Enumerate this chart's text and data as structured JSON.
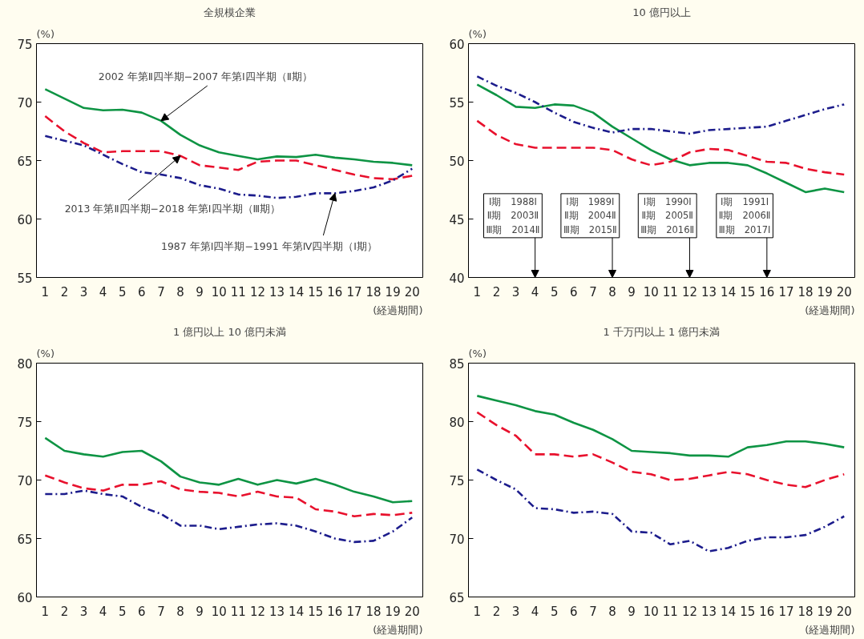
{
  "chart_data": [
    {
      "type": "line",
      "title": "全規模企業",
      "ylabel": "(%)",
      "xlabel": "(経過期間)",
      "x": [
        1,
        2,
        3,
        4,
        5,
        6,
        7,
        8,
        9,
        10,
        11,
        12,
        13,
        14,
        15,
        16,
        17,
        18,
        19,
        20
      ],
      "xlim": [
        0.55,
        20.55
      ],
      "xticks": [
        1,
        2,
        3,
        4,
        5,
        6,
        7,
        8,
        9,
        10,
        11,
        12,
        13,
        14,
        15,
        16,
        17,
        18,
        19,
        20
      ],
      "ylim": [
        55,
        75
      ],
      "yticks": [
        55,
        60,
        65,
        70,
        75
      ],
      "series": [
        {
          "color": "#0e9444",
          "line_style": "solid",
          "values": [
            71.1,
            70.3,
            69.5,
            69.3,
            69.35,
            69.1,
            68.4,
            67.2,
            66.3,
            65.7,
            65.4,
            65.1,
            65.35,
            65.3,
            65.5,
            65.25,
            65.1,
            64.9,
            64.8,
            64.6
          ]
        },
        {
          "color": "#e8112d",
          "line_style": "dashed",
          "values": [
            68.8,
            67.5,
            66.5,
            65.7,
            65.8,
            65.8,
            65.8,
            65.4,
            64.6,
            64.4,
            64.2,
            64.9,
            65.0,
            65.0,
            64.6,
            64.2,
            63.8,
            63.5,
            63.4,
            63.7
          ]
        },
        {
          "color": "#1c1c8c",
          "line_style": "dashdot",
          "values": [
            67.1,
            66.7,
            66.3,
            65.5,
            64.7,
            64.0,
            63.8,
            63.5,
            62.9,
            62.6,
            62.1,
            62.0,
            61.8,
            61.9,
            62.2,
            62.2,
            62.4,
            62.7,
            63.3,
            64.3
          ]
        }
      ],
      "annotations": [
        {
          "text": "2002 年第Ⅱ四半期−2007 年第Ⅰ四半期（Ⅱ期）",
          "x": 7,
          "y": 68.4
        },
        {
          "text": "2013 年第Ⅱ四半期−2018 年第Ⅰ四半期（Ⅲ期）",
          "x": 8,
          "y": 65.4
        },
        {
          "text": "1987 年第Ⅰ四半期−1991 年第Ⅳ四半期（Ⅰ期）",
          "x": 16,
          "y": 62.2
        }
      ]
    },
    {
      "type": "line",
      "title": "10 億円以上",
      "ylabel": "(%)",
      "xlabel": "(経過期間)",
      "x": [
        1,
        2,
        3,
        4,
        5,
        6,
        7,
        8,
        9,
        10,
        11,
        12,
        13,
        14,
        15,
        16,
        17,
        18,
        19,
        20
      ],
      "xlim": [
        0.55,
        20.55
      ],
      "xticks": [
        1,
        2,
        3,
        4,
        5,
        6,
        7,
        8,
        9,
        10,
        11,
        12,
        13,
        14,
        15,
        16,
        17,
        18,
        19,
        20
      ],
      "ylim": [
        40,
        60
      ],
      "yticks": [
        40,
        45,
        50,
        55,
        60
      ],
      "series": [
        {
          "color": "#0e9444",
          "line_style": "solid",
          "values": [
            56.5,
            55.6,
            54.6,
            54.5,
            54.8,
            54.7,
            54.1,
            52.9,
            51.9,
            50.9,
            50.1,
            49.6,
            49.8,
            49.8,
            49.6,
            48.9,
            48.1,
            47.3,
            47.6,
            47.3
          ]
        },
        {
          "color": "#e8112d",
          "line_style": "dashed",
          "values": [
            53.4,
            52.2,
            51.4,
            51.1,
            51.1,
            51.1,
            51.1,
            50.9,
            50.1,
            49.6,
            49.9,
            50.7,
            51.0,
            50.9,
            50.4,
            49.9,
            49.8,
            49.3,
            49.0,
            48.8
          ]
        },
        {
          "color": "#1c1c8c",
          "line_style": "dashdot",
          "values": [
            57.2,
            56.4,
            55.8,
            55.0,
            54.1,
            53.3,
            52.8,
            52.4,
            52.7,
            52.7,
            52.5,
            52.3,
            52.6,
            52.7,
            52.8,
            52.9,
            53.4,
            53.9,
            54.4,
            54.8
          ]
        }
      ],
      "annotations": [
        "Ⅰ期　1988Ⅰ\nⅡ期　2003Ⅱ\nⅢ期　2014Ⅱ",
        "Ⅰ期　1989Ⅰ\nⅡ期　2004Ⅱ\nⅢ期　2015Ⅱ",
        "Ⅰ期　1990Ⅰ\nⅡ期　2005Ⅱ\nⅢ期　2016Ⅱ",
        "Ⅰ期　1991Ⅰ\nⅡ期　2006Ⅱ\nⅢ期　2017Ⅰ"
      ]
    },
    {
      "type": "line",
      "title": "1 億円以上 10 億円未満",
      "ylabel": "(%)",
      "xlabel": "(経過期間)",
      "x": [
        1,
        2,
        3,
        4,
        5,
        6,
        7,
        8,
        9,
        10,
        11,
        12,
        13,
        14,
        15,
        16,
        17,
        18,
        19,
        20
      ],
      "xlim": [
        0.55,
        20.55
      ],
      "xticks": [
        1,
        2,
        3,
        4,
        5,
        6,
        7,
        8,
        9,
        10,
        11,
        12,
        13,
        14,
        15,
        16,
        17,
        18,
        19,
        20
      ],
      "ylim": [
        60,
        80
      ],
      "yticks": [
        60,
        65,
        70,
        75,
        80
      ],
      "series": [
        {
          "color": "#0e9444",
          "line_style": "solid",
          "values": [
            73.6,
            72.5,
            72.2,
            72.0,
            72.4,
            72.5,
            71.6,
            70.3,
            69.8,
            69.6,
            70.1,
            69.6,
            70.0,
            69.7,
            70.1,
            69.6,
            69.0,
            68.6,
            68.1,
            68.2
          ]
        },
        {
          "color": "#e8112d",
          "line_style": "dashed",
          "values": [
            70.4,
            69.8,
            69.3,
            69.1,
            69.6,
            69.6,
            69.9,
            69.2,
            69.0,
            68.9,
            68.6,
            69.0,
            68.6,
            68.5,
            67.5,
            67.3,
            66.9,
            67.1,
            67.0,
            67.2
          ]
        },
        {
          "color": "#1c1c8c",
          "line_style": "dashdot",
          "values": [
            68.8,
            68.8,
            69.1,
            68.8,
            68.6,
            67.7,
            67.1,
            66.1,
            66.1,
            65.8,
            66.0,
            66.2,
            66.3,
            66.1,
            65.6,
            65.0,
            64.7,
            64.8,
            65.6,
            66.8
          ]
        }
      ]
    },
    {
      "type": "line",
      "title": "1 千万円以上 1 億円未満",
      "ylabel": "(%)",
      "xlabel": "(経過期間)",
      "x": [
        1,
        2,
        3,
        4,
        5,
        6,
        7,
        8,
        9,
        10,
        11,
        12,
        13,
        14,
        15,
        16,
        17,
        18,
        19,
        20
      ],
      "xlim": [
        0.55,
        20.55
      ],
      "xticks": [
        1,
        2,
        3,
        4,
        5,
        6,
        7,
        8,
        9,
        10,
        11,
        12,
        13,
        14,
        15,
        16,
        17,
        18,
        19,
        20
      ],
      "ylim": [
        65,
        85
      ],
      "yticks": [
        65,
        70,
        75,
        80,
        85
      ],
      "series": [
        {
          "color": "#0e9444",
          "line_style": "solid",
          "values": [
            82.2,
            81.8,
            81.4,
            80.9,
            80.6,
            79.9,
            79.3,
            78.5,
            77.5,
            77.4,
            77.3,
            77.1,
            77.1,
            77.0,
            77.8,
            78.0,
            78.3,
            78.3,
            78.1,
            77.8
          ]
        },
        {
          "color": "#e8112d",
          "line_style": "dashed",
          "values": [
            80.8,
            79.7,
            78.8,
            77.2,
            77.2,
            77.0,
            77.2,
            76.5,
            75.7,
            75.5,
            75.0,
            75.1,
            75.4,
            75.7,
            75.5,
            75.0,
            74.6,
            74.4,
            75.0,
            75.5
          ]
        },
        {
          "color": "#1c1c8c",
          "line_style": "dashdot",
          "values": [
            75.9,
            75.0,
            74.2,
            72.6,
            72.5,
            72.2,
            72.3,
            72.1,
            70.6,
            70.5,
            69.5,
            69.8,
            68.9,
            69.2,
            69.8,
            70.1,
            70.1,
            70.3,
            71.0,
            71.9
          ]
        }
      ]
    }
  ]
}
